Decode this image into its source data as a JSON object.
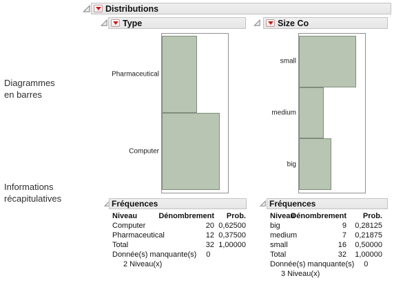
{
  "side_annotations": [
    {
      "text": "Diagrammes\nen barres"
    },
    {
      "text": "Informations\nrécapitulatives"
    }
  ],
  "outline": {
    "title": "Distributions"
  },
  "chart_data": [
    {
      "type": "bar",
      "orientation": "horizontal",
      "title": "Type",
      "categories": [
        "Pharmaceutical",
        "Computer"
      ],
      "values": [
        12,
        20
      ],
      "axis_max": 22.8,
      "grid": false,
      "legend": "none",
      "bar_color": "#b8c5b2",
      "bar_border": "#7f8d7c"
    },
    {
      "type": "bar",
      "orientation": "horizontal",
      "title": "Size Co",
      "categories": [
        "small",
        "medium",
        "big"
      ],
      "values": [
        16,
        7,
        9
      ],
      "axis_max": 18.5,
      "grid": false,
      "legend": "none",
      "bar_color": "#b8c5b2",
      "bar_border": "#7f8d7c"
    }
  ],
  "frequency_tables": [
    {
      "title": "Fréquences",
      "columns": [
        "Niveau",
        "Dénombrement",
        "Prob."
      ],
      "rows": [
        [
          "Computer",
          "20",
          "0,62500"
        ],
        [
          "Pharmaceutical",
          "12",
          "0,37500"
        ],
        [
          "Total",
          "32",
          "1,00000"
        ]
      ],
      "missing_label": "Donnée(s) manquante(s)",
      "missing_value": "0",
      "levels_text": "2  Niveau(x)"
    },
    {
      "title": "Fréquences",
      "columns": [
        "Niveau",
        "Dénombrement",
        "Prob."
      ],
      "rows": [
        [
          "big",
          "9",
          "0,28125"
        ],
        [
          "medium",
          "7",
          "0,21875"
        ],
        [
          "small",
          "16",
          "0,50000"
        ],
        [
          "Total",
          "32",
          "1,00000"
        ]
      ],
      "missing_label": "Donnée(s) manquante(s)",
      "missing_value": "0",
      "levels_text": "3  Niveau(x)"
    }
  ],
  "colors": {
    "bar_fill": "#b8c5b2",
    "bar_border": "#7f8d7c",
    "header_bg": "#eaeaea",
    "header_border": "#c2c2c2",
    "red_triangle": "#cc1a1a"
  }
}
